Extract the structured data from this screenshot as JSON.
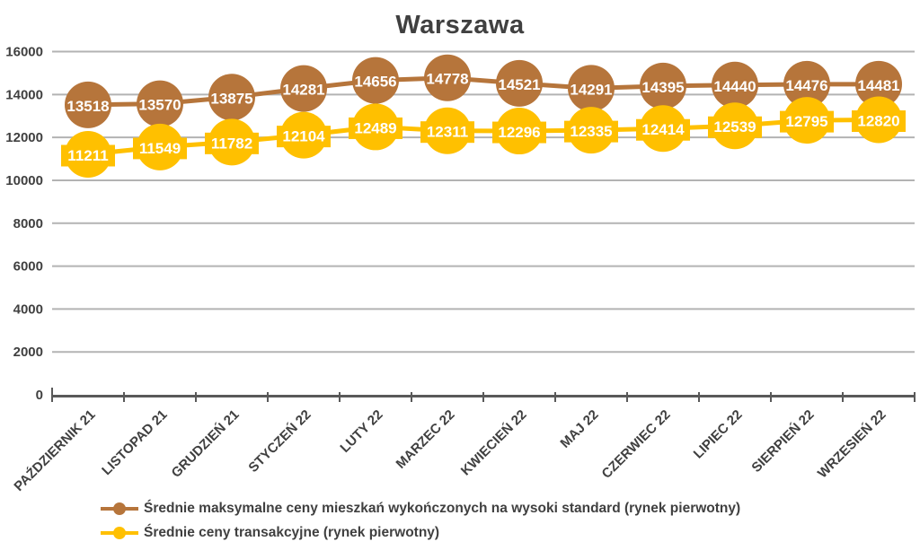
{
  "chart_data": {
    "type": "line",
    "title": "Warszawa",
    "categories": [
      "PAŹDZIERNIK 21",
      "LISTOPAD 21",
      "GRUDZIEŃ 21",
      "STYCZEŃ 22",
      "LUTY 22",
      "MARZEC 22",
      "KWIECIEŃ 22",
      "MAJ 22",
      "CZERWIEC 22",
      "LIPIEC 22",
      "SIERPIEŃ 22",
      "WRZESIEŃ 22"
    ],
    "series": [
      {
        "name": "Średnie maksymalne ceny mieszkań wykończonych na wysoki standard (rynek pierwotny)",
        "color": "#B6753B",
        "marker": "circle",
        "label_background": false,
        "values": [
          13518,
          13570,
          13875,
          14281,
          14656,
          14778,
          14521,
          14291,
          14395,
          14440,
          14476,
          14481
        ]
      },
      {
        "name": "Średnie ceny transakcyjne (rynek pierwotny)",
        "color": "#FFC000",
        "marker": "circle",
        "label_background": true,
        "values": [
          11211,
          11549,
          11782,
          12104,
          12489,
          12311,
          12296,
          12335,
          12414,
          12539,
          12795,
          12820
        ]
      }
    ],
    "xlabel": "",
    "ylabel": "",
    "ylim": [
      0,
      16000
    ],
    "ytick_step": 2000,
    "ytick_labels": [
      "0",
      "2000",
      "4000",
      "6000",
      "8000",
      "10000",
      "12000",
      "14000",
      "16000"
    ],
    "grid": true,
    "legend_position": "bottom-left",
    "colors": {
      "axis": "#595959",
      "grid": "#B3B3B3",
      "text": "#404040",
      "data_label_text": "#FFFFFF",
      "background": "#FFFFFF"
    }
  }
}
